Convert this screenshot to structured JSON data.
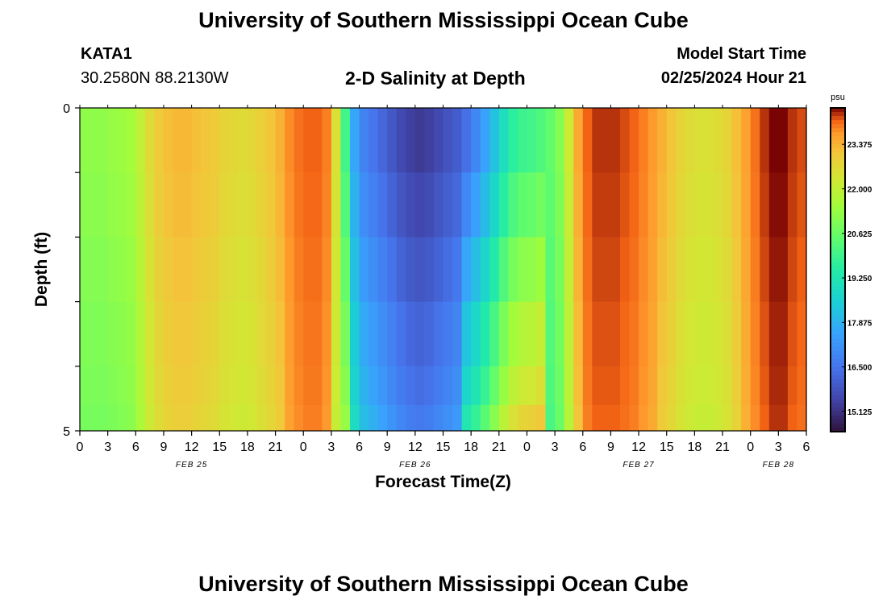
{
  "header": {
    "title": "University of Southern Mississippi Ocean Cube",
    "station_id": "KATA1",
    "coordinates": "30.2580N  88.2130W",
    "subtitle": "2-D Salinity at Depth",
    "model_start_label": "Model Start Time",
    "model_start_value": "02/25/2024 Hour 21",
    "footer_title": "University of Southern Mississippi Ocean Cube"
  },
  "chart_data": {
    "type": "heatmap",
    "xlabel": "Forecast Time(Z)",
    "ylabel": "Depth (ft)",
    "x_tick_labels": [
      "0",
      "3",
      "6",
      "9",
      "12",
      "15",
      "18",
      "21",
      "0",
      "3",
      "6",
      "9",
      "12",
      "15",
      "18",
      "21",
      "0",
      "3",
      "6",
      "9",
      "12",
      "15",
      "18",
      "21",
      "0",
      "3",
      "6"
    ],
    "x_range_hours": [
      0,
      78
    ],
    "date_labels": [
      {
        "label": "FEB 25",
        "hour": 12
      },
      {
        "label": "FEB 26",
        "hour": 36
      },
      {
        "label": "FEB 27",
        "hour": 60
      },
      {
        "label": "FEB 28",
        "hour": 75
      }
    ],
    "y_tick_labels": [
      "0",
      "5"
    ],
    "y_range": [
      0,
      5
    ],
    "colorbar": {
      "unit": "psu",
      "min": 14.5,
      "max": 24.5,
      "tick_labels": [
        "23.375",
        "22.000",
        "20.625",
        "19.250",
        "17.875",
        "16.500",
        "15.125"
      ],
      "tick_values": [
        23.375,
        22.0,
        20.625,
        19.25,
        17.875,
        16.5,
        15.125
      ]
    },
    "depth_rows": [
      0,
      1,
      2,
      3,
      4,
      4.6
    ],
    "hours": [
      0,
      1,
      2,
      3,
      4,
      5,
      6,
      7,
      8,
      9,
      10,
      11,
      12,
      13,
      14,
      15,
      16,
      17,
      18,
      19,
      20,
      21,
      22,
      23,
      24,
      25,
      26,
      27,
      28,
      29,
      30,
      31,
      32,
      33,
      34,
      35,
      36,
      37,
      38,
      39,
      40,
      41,
      42,
      43,
      44,
      45,
      46,
      47,
      48,
      49,
      50,
      51,
      52,
      53,
      54,
      55,
      56,
      57,
      58,
      59,
      60,
      61,
      62,
      63,
      64,
      65,
      66,
      67,
      68,
      69,
      70,
      71,
      72,
      73,
      74,
      75,
      76,
      77
    ],
    "salinity_surface": [
      21.2,
      21.2,
      21.2,
      21.3,
      21.4,
      21.5,
      22.0,
      22.6,
      23.0,
      23.2,
      23.3,
      23.3,
      23.2,
      23.1,
      23.0,
      22.8,
      22.7,
      22.6,
      22.7,
      22.9,
      23.1,
      23.4,
      23.8,
      24.0,
      24.1,
      24.1,
      23.9,
      22.5,
      20.0,
      17.6,
      16.8,
      16.5,
      16.2,
      15.9,
      15.6,
      15.4,
      15.3,
      15.4,
      15.6,
      15.8,
      16.0,
      16.4,
      16.9,
      17.5,
      18.2,
      19.0,
      19.6,
      19.9,
      20.0,
      20.2,
      20.5,
      21.0,
      22.2,
      23.5,
      24.1,
      24.3,
      24.3,
      24.3,
      24.2,
      24.1,
      23.9,
      23.7,
      23.4,
      23.1,
      22.8,
      22.6,
      22.5,
      22.5,
      22.6,
      22.8,
      23.2,
      23.6,
      24.0,
      24.3,
      24.5,
      24.5,
      24.3,
      24.2
    ]
  }
}
